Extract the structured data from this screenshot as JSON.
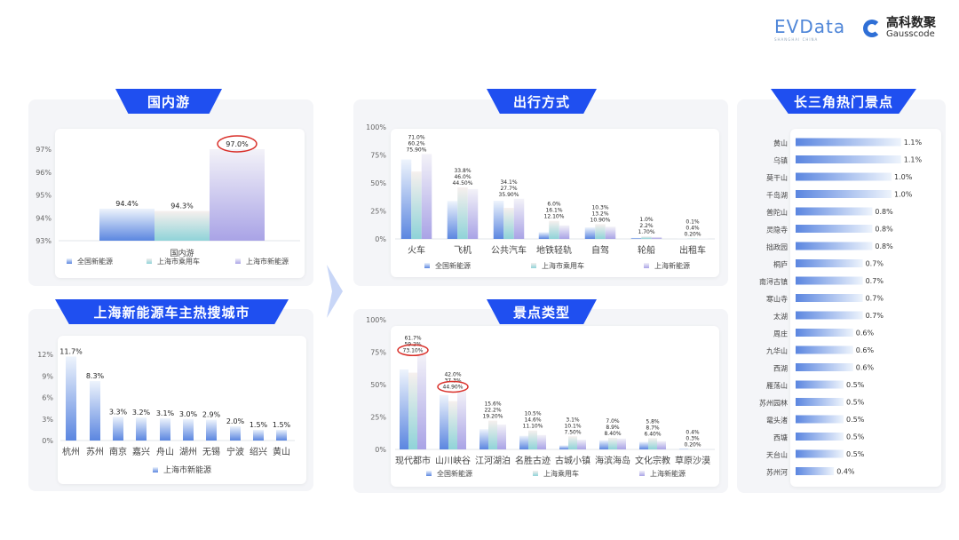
{
  "logo": {
    "evdata": "EVData",
    "evdata_sub": "SHANGHAI CHINA",
    "gauss_cn": "高科数聚",
    "gauss_en": "Gausscode"
  },
  "colors": {
    "banner": "#1f4ff0",
    "series": [
      "#5b86e0",
      "#8fd3d8",
      "#a9a3e6"
    ],
    "highlight": "#d9302a"
  },
  "panels": {
    "domestic": "国内游",
    "cities": "上海新能源车主热搜城市",
    "transport": "出行方式",
    "scenic_type": "景点类型",
    "hotspots": "长三角热门景点"
  },
  "chart_data": [
    {
      "id": "domestic",
      "type": "bar",
      "categories": [
        "国内游"
      ],
      "ylim": [
        93,
        97
      ],
      "yticks": [
        "93%",
        "94%",
        "95%",
        "96%",
        "97%"
      ],
      "legend_position": "bottom",
      "series": [
        {
          "name": "全国新能源",
          "values": [
            94.4
          ],
          "labels": [
            "94.4%"
          ]
        },
        {
          "name": "上海市乘用车",
          "values": [
            94.3
          ],
          "labels": [
            "94.3%"
          ]
        },
        {
          "name": "上海市新能源",
          "values": [
            97.0
          ],
          "labels": [
            "97.0%"
          ]
        }
      ],
      "highlighted": [
        "上海市新能源:国内游"
      ]
    },
    {
      "id": "cities",
      "type": "bar",
      "categories": [
        "杭州",
        "苏州",
        "南京",
        "嘉兴",
        "舟山",
        "湖州",
        "无锡",
        "宁波",
        "绍兴",
        "黄山"
      ],
      "ylim": [
        0,
        12
      ],
      "yticks": [
        "0%",
        "3%",
        "6%",
        "9%",
        "12%"
      ],
      "legend_position": "bottom",
      "series": [
        {
          "name": "上海市新能源",
          "values": [
            11.7,
            8.3,
            3.3,
            3.2,
            3.1,
            3.0,
            2.9,
            2.0,
            1.5,
            1.5
          ],
          "labels": [
            "11.7%",
            "8.3%",
            "3.3%",
            "3.2%",
            "3.1%",
            "3.0%",
            "2.9%",
            "2.0%",
            "1.5%",
            "1.5%"
          ]
        }
      ]
    },
    {
      "id": "transport",
      "type": "bar",
      "categories": [
        "火车",
        "飞机",
        "公共汽车",
        "地铁轻轨",
        "自驾",
        "轮船",
        "出租车"
      ],
      "ylim": [
        0,
        100
      ],
      "yticks": [
        "0%",
        "25%",
        "50%",
        "75%",
        "100%"
      ],
      "legend_position": "bottom",
      "series": [
        {
          "name": "全国新能源",
          "values": [
            71.0,
            33.8,
            34.1,
            6.0,
            10.3,
            1.0,
            0.1
          ],
          "labels": [
            "71.0%",
            "33.8%",
            "34.1%",
            "6.0%",
            "10.3%",
            "1.0%",
            "0.1%"
          ]
        },
        {
          "name": "上海市乘用车",
          "values": [
            60.2,
            46.0,
            27.7,
            16.1,
            13.2,
            2.2,
            0.4
          ],
          "labels": [
            "60.2%",
            "46.0%",
            "27.7%",
            "16.1%",
            "13.2%",
            "2.2%",
            "0.4%"
          ]
        },
        {
          "name": "上海新能源",
          "values": [
            75.9,
            44.5,
            35.9,
            12.1,
            10.9,
            1.7,
            0.2
          ],
          "labels": [
            "75.90%",
            "44.50%",
            "35.90%",
            "12.10%",
            "10.90%",
            "1.70%",
            "0.20%"
          ]
        }
      ]
    },
    {
      "id": "scenic_type",
      "type": "bar",
      "categories": [
        "现代都市",
        "山川峡谷",
        "江河湖泊",
        "名胜古迹",
        "古城小镇",
        "海滨海岛",
        "文化宗教",
        "草原沙漠"
      ],
      "ylim": [
        0,
        100
      ],
      "yticks": [
        "0%",
        "25%",
        "50%",
        "75%",
        "100%"
      ],
      "legend_position": "bottom",
      "series": [
        {
          "name": "全国新能源",
          "values": [
            61.7,
            42.0,
            15.6,
            10.5,
            3.1,
            7.0,
            5.8,
            0.4
          ],
          "labels": [
            "61.7%",
            "42.0%",
            "15.6%",
            "10.5%",
            "3.1%",
            "7.0%",
            "5.8%",
            "0.4%"
          ]
        },
        {
          "name": "上海乘用车",
          "values": [
            59.2,
            37.3,
            22.2,
            14.6,
            10.1,
            8.9,
            8.7,
            0.3
          ],
          "labels": [
            "59.2%",
            "37.3%",
            "22.2%",
            "14.6%",
            "10.1%",
            "8.9%",
            "8.7%",
            "0.3%"
          ]
        },
        {
          "name": "上海新能源",
          "values": [
            73.1,
            44.9,
            19.2,
            11.1,
            7.5,
            8.4,
            6.4,
            0.2
          ],
          "labels": [
            "73.10%",
            "44.90%",
            "19.20%",
            "11.10%",
            "7.50%",
            "8.40%",
            "6.40%",
            "0.20%"
          ]
        }
      ],
      "highlighted": [
        "上海新能源:现代都市",
        "上海新能源:山川峡谷"
      ]
    },
    {
      "id": "hotspots",
      "type": "bar",
      "orientation": "horizontal",
      "categories": [
        "黄山",
        "乌镇",
        "莫干山",
        "千岛湖",
        "普陀山",
        "灵隐寺",
        "拙政园",
        "桐庐",
        "南浔古镇",
        "寒山寺",
        "太湖",
        "周庄",
        "九华山",
        "西湖",
        "雁荡山",
        "苏州园林",
        "鼋头渚",
        "西塘",
        "天台山",
        "苏州河"
      ],
      "values": [
        1.1,
        1.1,
        1.0,
        1.0,
        0.8,
        0.8,
        0.8,
        0.7,
        0.7,
        0.7,
        0.7,
        0.6,
        0.6,
        0.6,
        0.5,
        0.5,
        0.5,
        0.5,
        0.5,
        0.4
      ],
      "labels": [
        "1.1%",
        "1.1%",
        "1.0%",
        "1.0%",
        "0.8%",
        "0.8%",
        "0.8%",
        "0.7%",
        "0.7%",
        "0.7%",
        "0.7%",
        "0.6%",
        "0.6%",
        "0.6%",
        "0.5%",
        "0.5%",
        "0.5%",
        "0.5%",
        "0.5%",
        "0.4%"
      ]
    }
  ]
}
